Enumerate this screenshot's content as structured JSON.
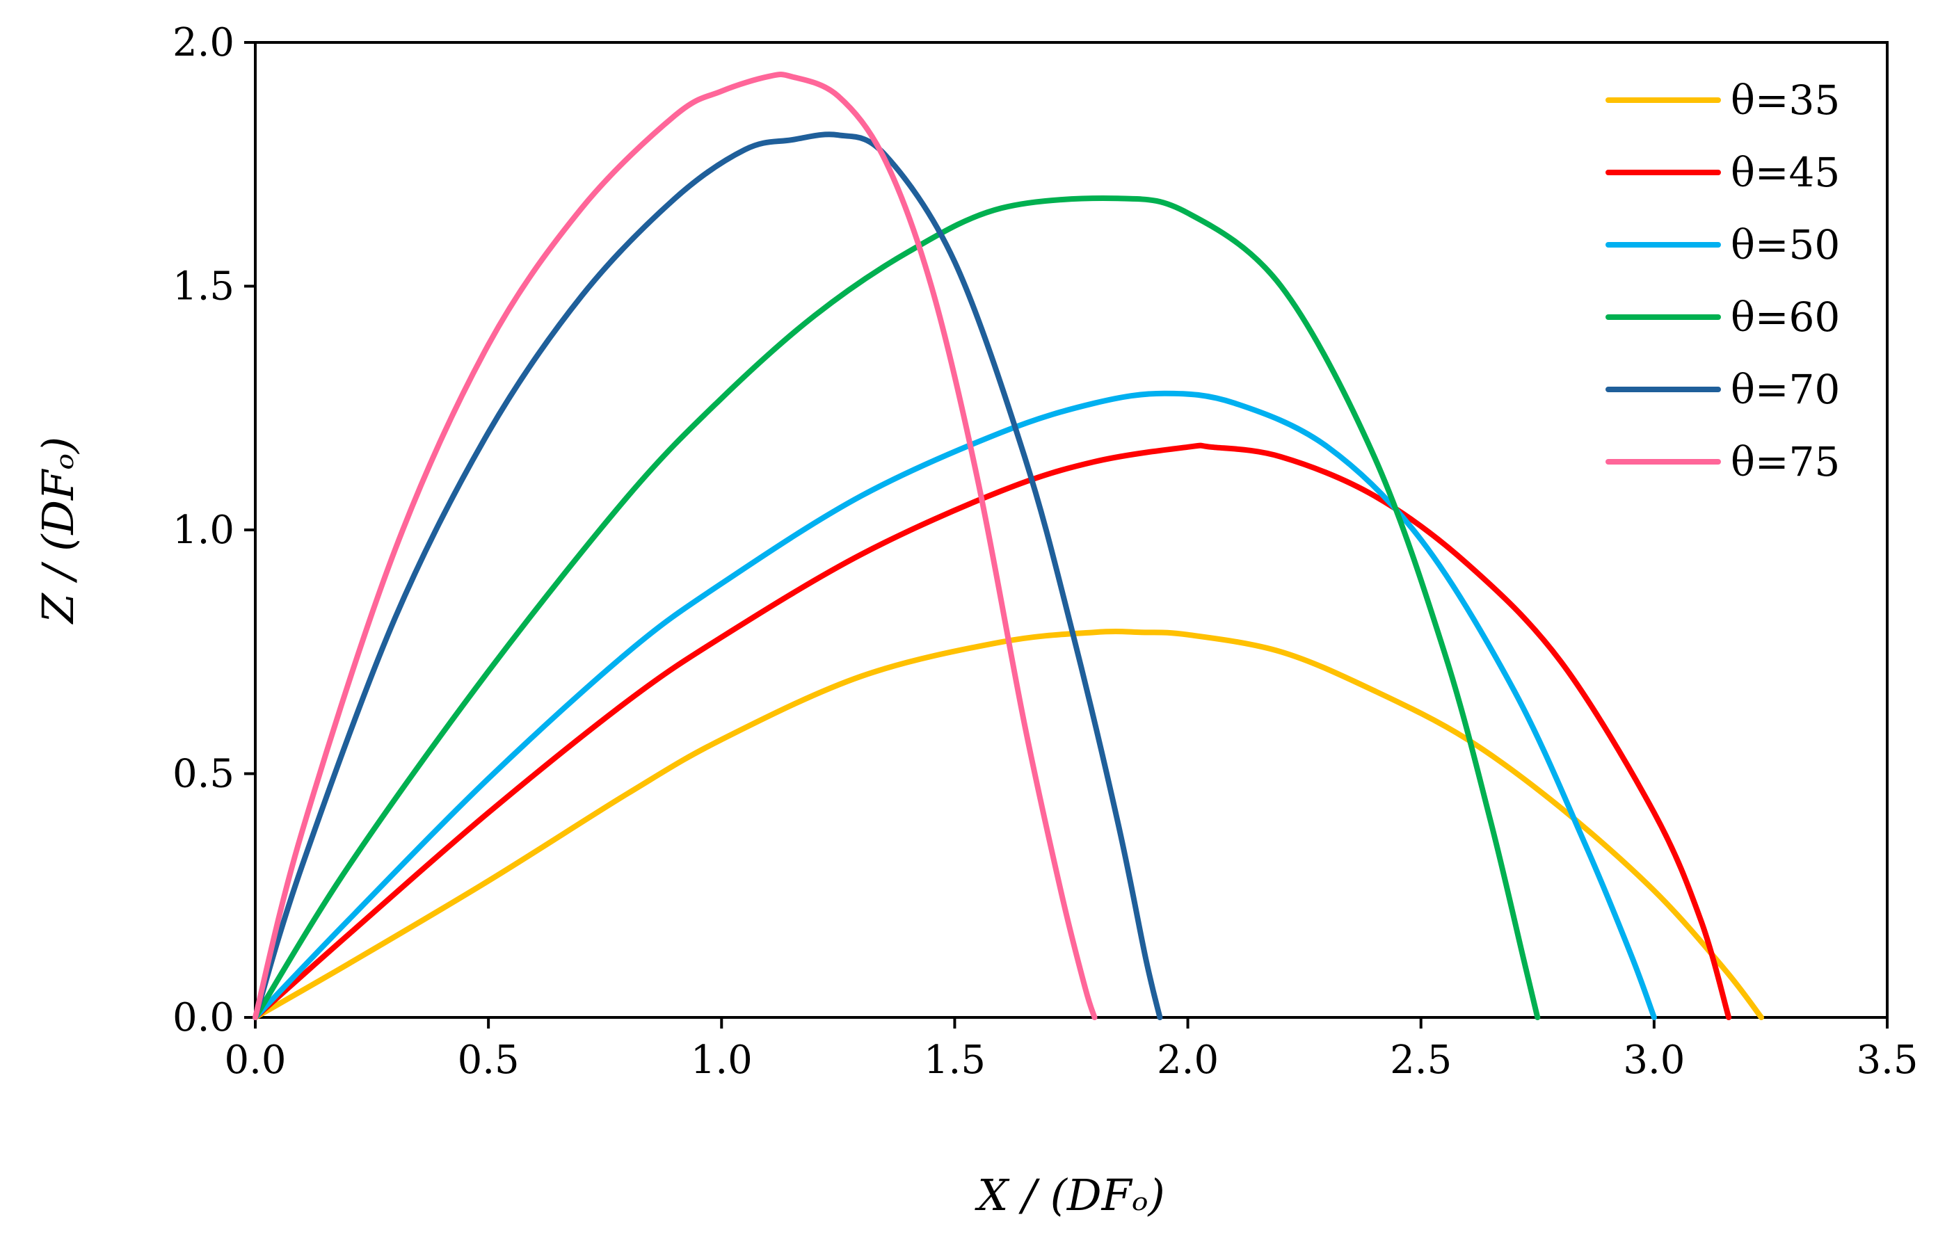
{
  "chart_data": {
    "type": "line",
    "title": "",
    "xlabel": "X / (DFₒ)",
    "ylabel": "Z / (DFₒ)",
    "xlim": [
      0,
      3.5
    ],
    "ylim": [
      0,
      2.0
    ],
    "x_ticks": [
      "0.0",
      "0.5",
      "1.0",
      "1.5",
      "2.0",
      "2.5",
      "3.0",
      "3.5"
    ],
    "y_ticks": [
      "0.0",
      "0.5",
      "1.0",
      "1.5",
      "2.0"
    ],
    "grid": false,
    "legend_position": "top-right",
    "series": [
      {
        "name": "θ=35",
        "color": "#FFC000",
        "x": [
          0,
          0.2,
          0.5,
          0.8,
          1.0,
          1.3,
          1.6,
          1.8,
          1.9,
          2.0,
          2.2,
          2.4,
          2.6,
          2.8,
          3.0,
          3.15,
          3.23
        ],
        "y": [
          0,
          0.11,
          0.28,
          0.46,
          0.57,
          0.7,
          0.77,
          0.79,
          0.79,
          0.785,
          0.75,
          0.67,
          0.57,
          0.43,
          0.26,
          0.1,
          0
        ]
      },
      {
        "name": "θ=45",
        "color": "#FF0000",
        "x": [
          0,
          0.2,
          0.5,
          0.8,
          1.0,
          1.3,
          1.6,
          1.8,
          2.0,
          2.05,
          2.2,
          2.4,
          2.6,
          2.8,
          3.0,
          3.1,
          3.16
        ],
        "y": [
          0,
          0.17,
          0.42,
          0.65,
          0.78,
          0.95,
          1.08,
          1.14,
          1.17,
          1.17,
          1.15,
          1.07,
          0.93,
          0.73,
          0.42,
          0.2,
          0
        ]
      },
      {
        "name": "θ=50",
        "color": "#00B0F0",
        "x": [
          0,
          0.2,
          0.5,
          0.8,
          1.0,
          1.3,
          1.6,
          1.8,
          1.95,
          2.1,
          2.3,
          2.5,
          2.7,
          2.85,
          2.95,
          3.0
        ],
        "y": [
          0,
          0.2,
          0.49,
          0.75,
          0.89,
          1.07,
          1.2,
          1.26,
          1.28,
          1.26,
          1.17,
          0.98,
          0.67,
          0.36,
          0.13,
          0
        ]
      },
      {
        "name": "θ=60",
        "color": "#00B050",
        "x": [
          0,
          0.2,
          0.5,
          0.8,
          1.0,
          1.2,
          1.4,
          1.6,
          1.85,
          2.0,
          2.2,
          2.4,
          2.55,
          2.65,
          2.72,
          2.75
        ],
        "y": [
          0,
          0.31,
          0.71,
          1.07,
          1.27,
          1.44,
          1.57,
          1.66,
          1.68,
          1.65,
          1.5,
          1.15,
          0.75,
          0.4,
          0.12,
          0
        ]
      },
      {
        "name": "θ=70",
        "color": "#1F5F9A",
        "x": [
          0,
          0.1,
          0.3,
          0.5,
          0.7,
          0.9,
          1.05,
          1.15,
          1.25,
          1.35,
          1.5,
          1.65,
          1.75,
          1.85,
          1.91,
          1.94
        ],
        "y": [
          0,
          0.31,
          0.82,
          1.2,
          1.48,
          1.68,
          1.78,
          1.8,
          1.81,
          1.77,
          1.55,
          1.15,
          0.8,
          0.4,
          0.12,
          0
        ]
      },
      {
        "name": "θ=75",
        "color": "#FF6699",
        "x": [
          0,
          0.1,
          0.3,
          0.5,
          0.7,
          0.9,
          1.0,
          1.1,
          1.15,
          1.25,
          1.35,
          1.45,
          1.55,
          1.65,
          1.73,
          1.78,
          1.8
        ],
        "y": [
          0,
          0.38,
          0.96,
          1.38,
          1.66,
          1.85,
          1.9,
          1.93,
          1.93,
          1.89,
          1.76,
          1.5,
          1.1,
          0.6,
          0.25,
          0.06,
          0
        ]
      }
    ]
  }
}
